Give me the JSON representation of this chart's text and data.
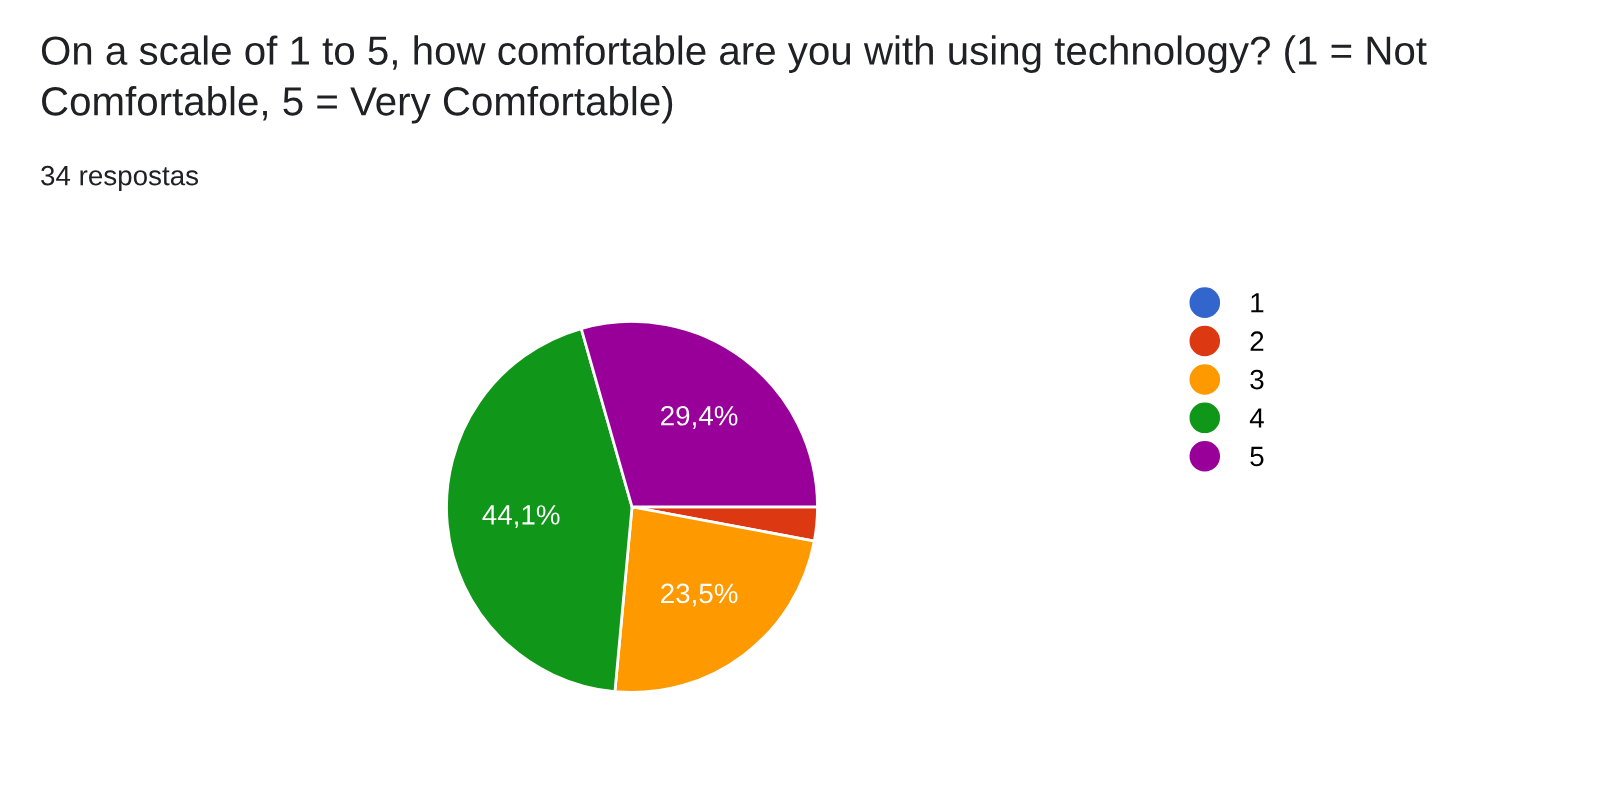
{
  "chart_data": {
    "type": "pie",
    "title": "On a scale of 1 to 5, how comfortable are you with using technology? (1 = Not Comfortable, 5 = Very Comfortable)",
    "subtitle": "34 respostas",
    "categories": [
      "1",
      "2",
      "3",
      "4",
      "5"
    ],
    "values": [
      0,
      2.94,
      23.53,
      44.12,
      29.41
    ],
    "value_labels": [
      null,
      null,
      "23,5%",
      "44,1%",
      "29,4%"
    ],
    "colors": [
      "#3366cc",
      "#dc3912",
      "#ff9900",
      "#109618",
      "#990099"
    ],
    "legend": "right"
  }
}
